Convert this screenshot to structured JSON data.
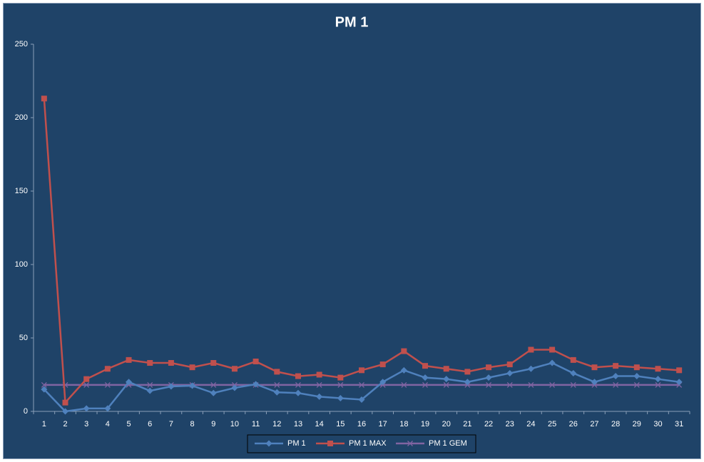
{
  "chart_data": {
    "type": "line",
    "title": "PM 1",
    "categories": [
      "1",
      "2",
      "3",
      "4",
      "5",
      "6",
      "7",
      "8",
      "9",
      "10",
      "11",
      "12",
      "13",
      "14",
      "15",
      "16",
      "17",
      "18",
      "19",
      "20",
      "21",
      "22",
      "23",
      "24",
      "25",
      "26",
      "27",
      "28",
      "29",
      "30",
      "31"
    ],
    "series": [
      {
        "name": "PM 1",
        "color": "#4f81bd",
        "marker": "diamond",
        "values": [
          15,
          0,
          2,
          2,
          20,
          14,
          17,
          17.5,
          12.5,
          16,
          18.5,
          13,
          12.5,
          10,
          9,
          8,
          20,
          28,
          23,
          22,
          20,
          23,
          26,
          29,
          33,
          26,
          20,
          24,
          24,
          22,
          20
        ]
      },
      {
        "name": "PM 1 MAX",
        "color": "#c0504d",
        "marker": "square",
        "values": [
          213,
          6,
          22,
          29,
          35,
          33,
          33,
          30,
          33,
          29,
          34,
          27,
          24,
          25,
          23,
          28,
          32,
          41,
          31,
          29,
          27,
          30,
          32,
          42,
          42,
          35,
          30,
          31,
          30,
          29,
          28
        ]
      },
      {
        "name": "PM 1 GEM",
        "color": "#8064a2",
        "marker": "x",
        "values": [
          18,
          18,
          18,
          18,
          18,
          18,
          18,
          18,
          18,
          18,
          18,
          18,
          18,
          18,
          18,
          18,
          18,
          18,
          18,
          18,
          18,
          18,
          18,
          18,
          18,
          18,
          18,
          18,
          18,
          18,
          18
        ]
      }
    ],
    "ylim": [
      0,
      250
    ],
    "yticks": [
      0,
      50,
      100,
      150,
      200,
      250
    ],
    "legend": "bottom"
  }
}
